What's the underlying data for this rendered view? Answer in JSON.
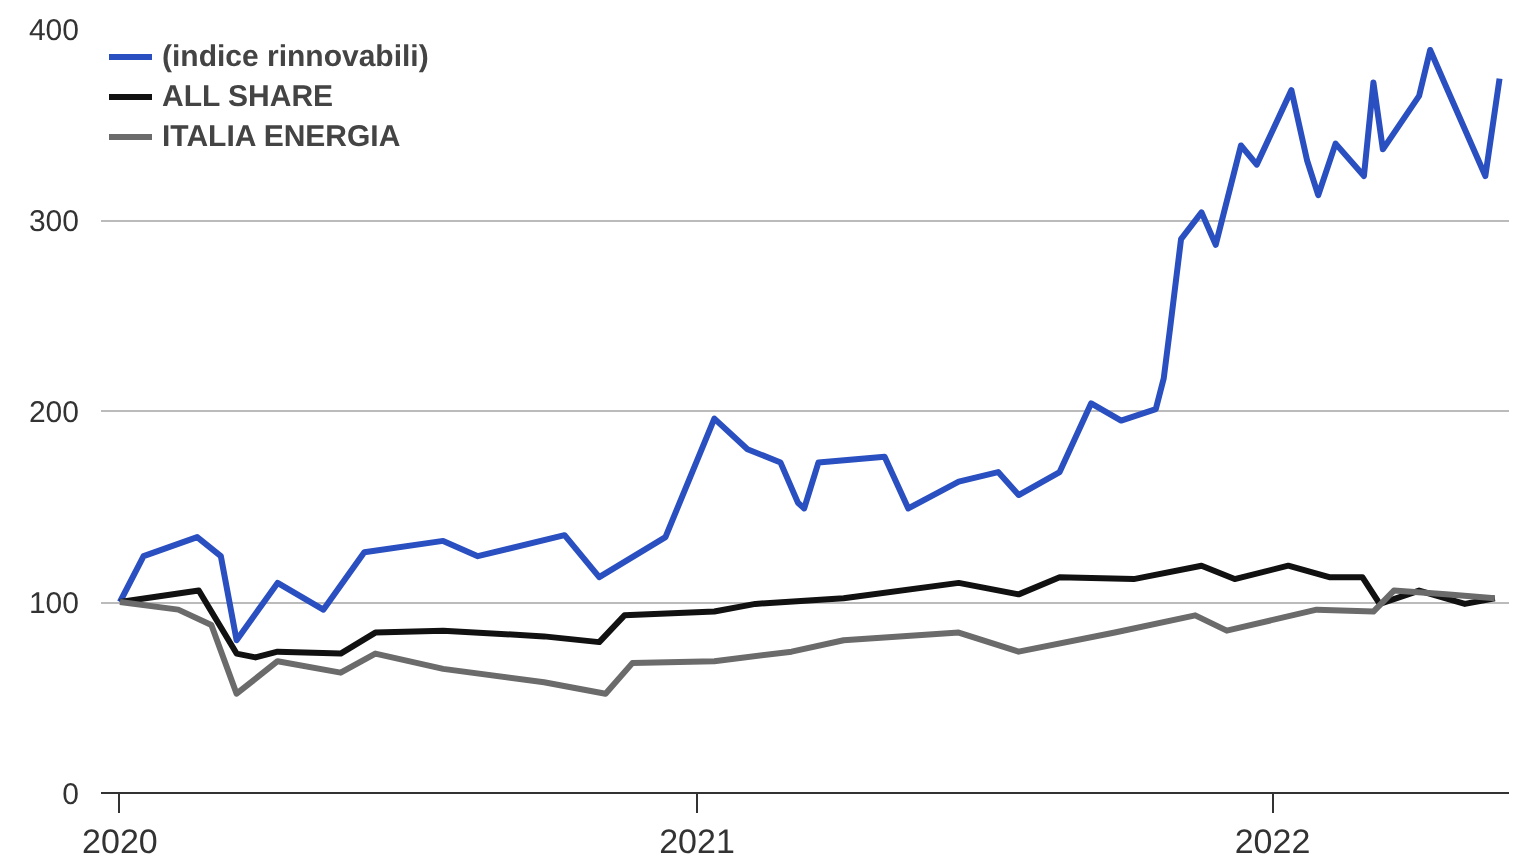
{
  "chart_data": {
    "type": "line",
    "xlim": [
      "2019-12-20",
      "2022-05-31"
    ],
    "xticks": [
      "2020",
      "2021",
      "2022"
    ],
    "ylim": [
      0,
      400
    ],
    "yticks": [
      0,
      100,
      200,
      300,
      400
    ],
    "grid": "y",
    "legend": "top left",
    "line_style": "solid",
    "series": [
      {
        "name": "(indice rinnovabili)",
        "color": "#2a4fc0",
        "x": [
          "2020-01-01",
          "2020-01-16",
          "2020-02-19",
          "2020-03-05",
          "2020-03-15",
          "2020-04-10",
          "2020-05-09",
          "2020-06-04",
          "2020-07-24",
          "2020-08-15",
          "2020-10-09",
          "2020-10-31",
          "2020-12-12",
          "2021-01-12",
          "2021-02-02",
          "2021-02-23",
          "2021-03-06",
          "2021-03-10",
          "2021-03-19",
          "2021-04-30",
          "2021-05-15",
          "2021-06-16",
          "2021-07-11",
          "2021-07-24",
          "2021-08-19",
          "2021-09-08",
          "2021-09-27",
          "2021-10-19",
          "2021-10-24",
          "2021-10-28",
          "2021-11-04",
          "2021-11-17",
          "2021-11-26",
          "2021-12-12",
          "2021-12-22",
          "2022-01-13",
          "2022-01-23",
          "2022-01-30",
          "2022-02-10",
          "2022-02-28",
          "2022-03-06",
          "2022-03-12",
          "2022-04-04",
          "2022-04-11",
          "2022-04-21",
          "2022-05-16",
          "2022-05-25"
        ],
        "values": [
          100,
          124,
          134,
          124,
          80,
          110,
          96,
          126,
          132,
          124,
          135,
          113,
          134,
          196,
          180,
          173,
          152,
          149,
          173,
          176,
          149,
          163,
          168,
          156,
          168,
          204,
          195,
          201,
          217,
          243,
          290,
          304,
          287,
          339,
          329,
          368,
          331,
          313,
          340,
          323,
          372,
          337,
          365,
          389,
          370,
          323,
          374
        ]
      },
      {
        "name": "ALL SHARE",
        "color": "#111111",
        "x": [
          "2020-01-01",
          "2020-02-20",
          "2020-03-15",
          "2020-03-27",
          "2020-04-10",
          "2020-05-20",
          "2020-06-11",
          "2020-07-24",
          "2020-09-26",
          "2020-10-31",
          "2020-11-16",
          "2021-01-12",
          "2021-02-07",
          "2021-04-04",
          "2021-06-16",
          "2021-07-24",
          "2021-08-19",
          "2021-10-05",
          "2021-11-17",
          "2021-12-08",
          "2022-01-11",
          "2022-02-06",
          "2022-02-27",
          "2022-03-10",
          "2022-04-04",
          "2022-05-03",
          "2022-05-22"
        ],
        "values": [
          100,
          106,
          73,
          71,
          74,
          73,
          84,
          85,
          82,
          79,
          93,
          95,
          99,
          102,
          110,
          104,
          113,
          112,
          119,
          112,
          119,
          113,
          113,
          99,
          106,
          99,
          102
        ]
      },
      {
        "name": "ITALIA ENERGIA",
        "color": "#6b6b6b",
        "x": [
          "2020-01-01",
          "2020-02-07",
          "2020-02-28",
          "2020-03-15",
          "2020-04-10",
          "2020-05-20",
          "2020-06-11",
          "2020-07-24",
          "2020-09-26",
          "2020-11-04",
          "2020-11-21",
          "2021-01-12",
          "2021-03-02",
          "2021-04-04",
          "2021-06-16",
          "2021-07-24",
          "2021-09-23",
          "2021-11-13",
          "2021-12-03",
          "2022-01-29",
          "2022-03-06",
          "2022-03-19",
          "2022-04-21",
          "2022-05-22"
        ],
        "values": [
          100,
          96,
          88,
          52,
          69,
          63,
          73,
          65,
          58,
          52,
          68,
          69,
          74,
          80,
          84,
          74,
          84,
          93,
          85,
          96,
          95,
          106,
          104,
          102
        ]
      }
    ]
  }
}
